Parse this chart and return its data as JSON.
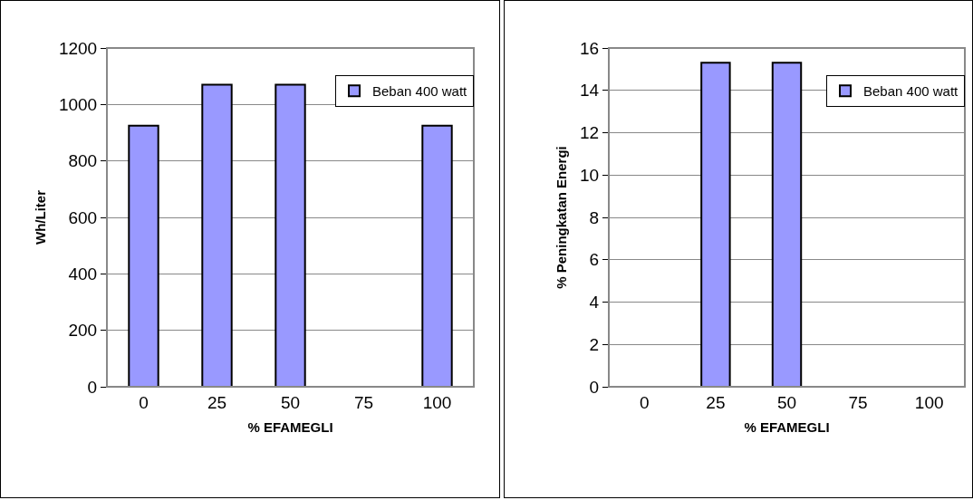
{
  "chart_data": [
    {
      "type": "bar",
      "xlabel": "% EFAMEGLI",
      "ylabel": "Wh/Liter",
      "categories": [
        "0",
        "25",
        "50",
        "75",
        "100"
      ],
      "series": [
        {
          "name": "Beban 400 watt",
          "color": "#9999ff",
          "values": [
            925,
            1070,
            1070,
            null,
            925
          ]
        }
      ],
      "ylim": [
        0,
        1200
      ],
      "yticks": [
        0,
        200,
        400,
        600,
        800,
        1000,
        1200
      ],
      "grid": "y",
      "legend": "top right"
    },
    {
      "type": "bar",
      "xlabel": "% EFAMEGLI",
      "ylabel": "% Peningkatan Energi",
      "categories": [
        "0",
        "25",
        "50",
        "75",
        "100"
      ],
      "series": [
        {
          "name": "Beban 400 watt",
          "color": "#9999ff",
          "values": [
            null,
            15.3,
            15.3,
            null,
            null
          ]
        }
      ],
      "ylim": [
        0,
        16
      ],
      "yticks": [
        0,
        2,
        4,
        6,
        8,
        10,
        12,
        14,
        16
      ],
      "grid": "y",
      "legend": "top right"
    }
  ]
}
